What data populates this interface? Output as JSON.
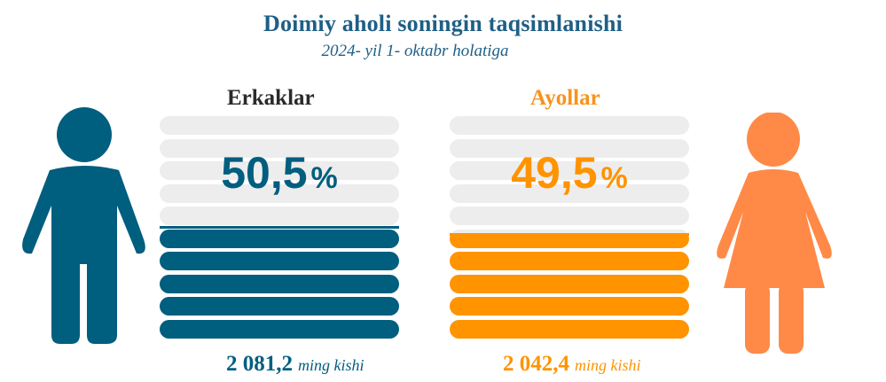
{
  "header": {
    "title": "Doimiy aholi soningin taqsimlanishi",
    "subtitle": "2024- yil 1- oktabr holatiga"
  },
  "colors": {
    "men": "#005e7f",
    "women": "#ff9300",
    "empty": "#ededed",
    "title": "#1f5f86"
  },
  "chart_data": {
    "type": "bar",
    "categories": [
      "Erkaklar",
      "Ayollar"
    ],
    "values": [
      50.5,
      49.5
    ],
    "unit": "%",
    "totals": [
      2081.2,
      2042.4
    ],
    "totals_unit": "ming kishi"
  },
  "groups": {
    "men": {
      "label": "Erkaklar",
      "percent_text": "50,5",
      "percent_unit": "%",
      "total_text": "2 081,2",
      "total_unit": "ming kishi",
      "icon": "male-person-icon"
    },
    "women": {
      "label": "Ayollar",
      "percent_text": "49,5",
      "percent_unit": "%",
      "total_text": "2 042,4",
      "total_unit": "ming kishi",
      "icon": "female-person-icon"
    }
  }
}
